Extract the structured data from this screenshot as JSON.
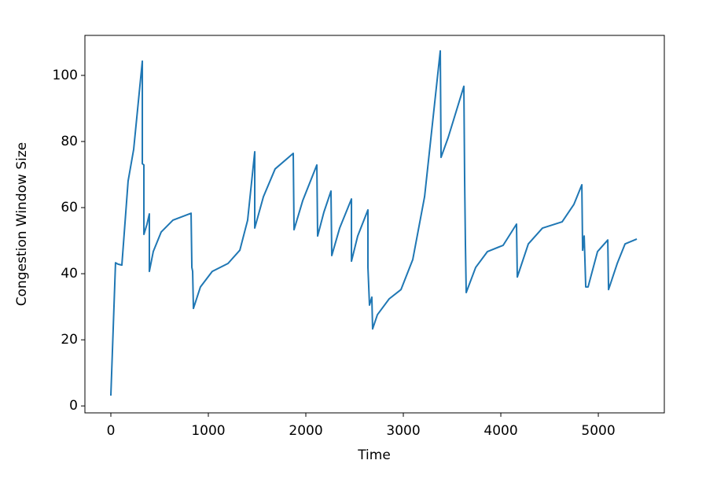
{
  "chart_data": {
    "type": "line",
    "xlabel": "Time",
    "ylabel": "Congestion Window Size",
    "color": "#1f77b4",
    "x": [
      0,
      48,
      73,
      113,
      177,
      234,
      323,
      323,
      339,
      339,
      371,
      395,
      395,
      435,
      516,
      637,
      823,
      831,
      839,
      847,
      919,
      1040,
      1202,
      1323,
      1403,
      1476,
      1476,
      1565,
      1685,
      1871,
      1879,
      1968,
      2113,
      2121,
      2185,
      2258,
      2266,
      2347,
      2468,
      2468,
      2532,
      2637,
      2637,
      2653,
      2677,
      2685,
      2734,
      2855,
      2976,
      3097,
      3218,
      3379,
      3387,
      3460,
      3621,
      3629,
      3637,
      3645,
      3742,
      3863,
      4024,
      4161,
      4169,
      4282,
      4427,
      4629,
      4750,
      4831,
      4839,
      4855,
      4871,
      4895,
      4992,
      5097,
      5105,
      5194,
      5274,
      5395
    ],
    "values": [
      3.1,
      43.3,
      42.9,
      42.6,
      68,
      77.6,
      104.3,
      73.3,
      72.9,
      51.9,
      55,
      58.1,
      40.7,
      46.7,
      52.6,
      56.2,
      58.3,
      41.9,
      40.7,
      29.5,
      36,
      40.7,
      43.1,
      47.1,
      56.2,
      76.9,
      53.8,
      63.3,
      71.7,
      76.4,
      53.3,
      62.1,
      72.9,
      51.4,
      58.6,
      65,
      45.5,
      53.8,
      62.6,
      43.8,
      51.4,
      59.3,
      41.9,
      30.5,
      32.9,
      23.3,
      27.6,
      32.4,
      35.2,
      44.3,
      63.3,
      107.4,
      75.2,
      81.2,
      96.7,
      68.1,
      48.6,
      34.3,
      41.9,
      46.7,
      48.6,
      55,
      39,
      49,
      53.8,
      55.7,
      61,
      66.9,
      47.1,
      51.4,
      36,
      36,
      46.7,
      50.2,
      35.2,
      43.1,
      49,
      50.5
    ],
    "xlim": [
      -266,
      5677
    ],
    "ylim": [
      -2.1,
      112.1
    ],
    "xticks": [
      0,
      1000,
      2000,
      3000,
      4000,
      5000
    ],
    "yticks": [
      0,
      20,
      40,
      60,
      80,
      100
    ]
  }
}
